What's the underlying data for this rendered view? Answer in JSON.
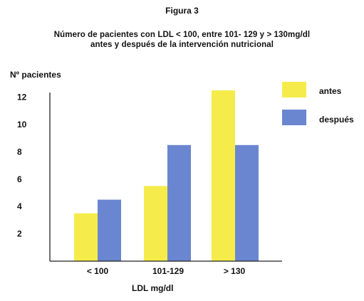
{
  "figure_label": "Figura 3",
  "chart_data": {
    "type": "bar",
    "title": "Número de pacientes con LDL < 100, entre 101- 129 y > 130mg/dl",
    "subtitle": "antes y después de la intervención nutricional",
    "xlabel": "LDL mg/dl",
    "ylabel": "Nº pacientes",
    "categories": [
      "< 100",
      "101-129",
      "> 130"
    ],
    "series": [
      {
        "name": "antes",
        "color": "#f5ec4b",
        "values": [
          3.5,
          5.5,
          12.5
        ]
      },
      {
        "name": "después",
        "color": "#6b86d0",
        "values": [
          4.5,
          8.5,
          8.5
        ]
      }
    ],
    "yticks": [
      "2",
      "4",
      "6",
      "8",
      "10",
      "12"
    ],
    "ylim": [
      0,
      13
    ],
    "grid": false,
    "legend_position": "top-right"
  }
}
